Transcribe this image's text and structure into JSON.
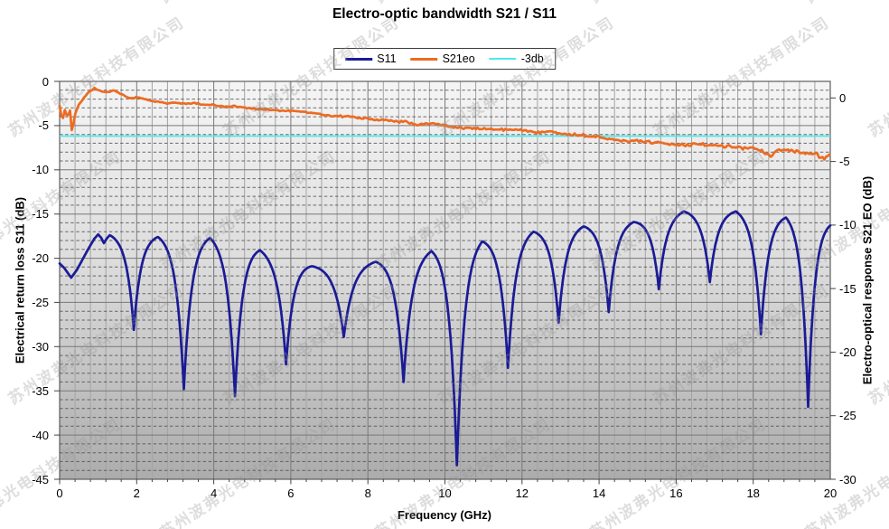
{
  "title": "Electro-optic bandwidth S21 / S11",
  "legend": {
    "items": [
      {
        "label": "S11"
      },
      {
        "label": "S21eo"
      },
      {
        "label": "-3db"
      }
    ]
  },
  "watermark": {
    "text": "苏州波弗光电科技有限公司",
    "color": "rgba(150,150,150,0.32)"
  },
  "colors": {
    "s11": "#1b1b96",
    "s21eo": "#ed6b21",
    "threshold": "#4fe9ec",
    "plot_bg_top": "#f5f5f5",
    "plot_bg_bottom": "#acacac",
    "grid_major": "#787878",
    "grid_minor_v": "#a3a3a3",
    "grid_minor_h_dash": "#4a4a4a"
  },
  "chart_data": {
    "type": "line",
    "title": "Electro-optic bandwidth S21 / S11",
    "xlabel": "Frequency (GHz)",
    "axes": {
      "x": {
        "min": 0,
        "max": 20,
        "major": 2,
        "minor": 0.4,
        "ticks": [
          "0",
          "2",
          "4",
          "6",
          "8",
          "10",
          "12",
          "14",
          "16",
          "18",
          "20"
        ]
      },
      "left": {
        "label": "Electrical return loss S11 (dB)",
        "min": -45,
        "max": 0,
        "major": 5,
        "minor": 1,
        "ticks": [
          "0",
          "-5",
          "-10",
          "-15",
          "-20",
          "-25",
          "-30",
          "-35",
          "-40",
          "-45"
        ]
      },
      "right": {
        "label": "Electro-optical response S21 EO (dB)",
        "min": -30,
        "max": 1.3,
        "major": 5,
        "ticks": [
          "0",
          "-5",
          "-10",
          "-15",
          "-20",
          "-25",
          "-30"
        ]
      }
    },
    "grid": "major-solid, minor-vertical-solid, minor-horizontal-dashed",
    "legend_position": "top-center",
    "threshold": {
      "label": "-3db",
      "value": -3,
      "axis": "right",
      "color": "#4fe9ec"
    },
    "series": [
      {
        "name": "S11",
        "axis": "left",
        "color": "#1b1b96",
        "description": "resonant ripple: rounded peaks ~-17..-15 dB with sharp dips; head = measured lead-in samples, extrema = alternating [peak,dip,...,peak] in (GHz,dB)",
        "head": [
          [
            0,
            -20.6
          ],
          [
            0.12,
            -21.1
          ],
          [
            0.3,
            -22.2
          ],
          [
            0.45,
            -21.3
          ],
          [
            0.6,
            -20.1
          ],
          [
            0.75,
            -18.9
          ],
          [
            0.9,
            -17.8
          ],
          [
            1.0,
            -17.3
          ],
          [
            1.08,
            -17.7
          ],
          [
            1.15,
            -18.3
          ],
          [
            1.22,
            -17.8
          ],
          [
            1.3,
            -17.4
          ]
        ],
        "extrema": [
          [
            1.3,
            -17.4
          ],
          [
            1.87,
            -28.1
          ],
          [
            2.55,
            -17.6
          ],
          [
            3.22,
            -34.8
          ],
          [
            3.9,
            -17.7
          ],
          [
            4.57,
            -35.6
          ],
          [
            5.2,
            -19.1
          ],
          [
            5.9,
            -32.0
          ],
          [
            6.55,
            -20.9
          ],
          [
            7.37,
            -28.9
          ],
          [
            8.2,
            -20.4
          ],
          [
            8.97,
            -34.0
          ],
          [
            9.65,
            -19.2
          ],
          [
            10.28,
            -43.4
          ],
          [
            10.97,
            -18.1
          ],
          [
            11.6,
            -32.4
          ],
          [
            12.3,
            -17.0
          ],
          [
            12.93,
            -27.3
          ],
          [
            13.6,
            -16.4
          ],
          [
            14.25,
            -26.1
          ],
          [
            14.9,
            -15.9
          ],
          [
            15.55,
            -23.5
          ],
          [
            16.2,
            -14.7
          ],
          [
            16.9,
            -22.7
          ],
          [
            17.55,
            -14.7
          ],
          [
            18.2,
            -28.6
          ],
          [
            18.85,
            -15.4
          ],
          [
            19.45,
            -36.8
          ],
          [
            20.0,
            -16.3
          ]
        ]
      },
      {
        "name": "S21eo",
        "axis": "right",
        "color": "#ed6b21",
        "description": "noisy electro-optic response, (GHz,dB) base samples; crosses -3dB near 13.5 GHz",
        "points": [
          [
            0,
            -0.6
          ],
          [
            0.07,
            -1.9
          ],
          [
            0.13,
            -0.9
          ],
          [
            0.2,
            -1.5
          ],
          [
            0.27,
            -1.0
          ],
          [
            0.32,
            -2.7
          ],
          [
            0.4,
            -1.3
          ],
          [
            0.5,
            -0.5
          ],
          [
            0.6,
            -0.15
          ],
          [
            0.7,
            0.3
          ],
          [
            0.8,
            0.55
          ],
          [
            0.9,
            0.75
          ],
          [
            1.0,
            0.65
          ],
          [
            1.1,
            0.5
          ],
          [
            1.25,
            0.45
          ],
          [
            1.4,
            0.6
          ],
          [
            1.55,
            0.35
          ],
          [
            1.7,
            0.15
          ],
          [
            1.85,
            -0.05
          ],
          [
            2.0,
            0.05
          ],
          [
            2.2,
            -0.1
          ],
          [
            2.4,
            -0.25
          ],
          [
            2.6,
            -0.3
          ],
          [
            2.8,
            -0.45
          ],
          [
            3.0,
            -0.35
          ],
          [
            3.2,
            -0.45
          ],
          [
            3.5,
            -0.4
          ],
          [
            3.8,
            -0.55
          ],
          [
            4.0,
            -0.55
          ],
          [
            4.3,
            -0.7
          ],
          [
            4.6,
            -0.65
          ],
          [
            5.0,
            -0.85
          ],
          [
            5.4,
            -0.95
          ],
          [
            5.8,
            -1.0
          ],
          [
            6.2,
            -1.05
          ],
          [
            6.6,
            -1.2
          ],
          [
            7.0,
            -1.4
          ],
          [
            7.4,
            -1.45
          ],
          [
            7.8,
            -1.55
          ],
          [
            8.2,
            -1.7
          ],
          [
            8.6,
            -1.8
          ],
          [
            9.0,
            -1.9
          ],
          [
            9.3,
            -2.15
          ],
          [
            9.6,
            -2.0
          ],
          [
            10.0,
            -2.15
          ],
          [
            10.4,
            -2.35
          ],
          [
            10.8,
            -2.4
          ],
          [
            11.2,
            -2.45
          ],
          [
            11.6,
            -2.5
          ],
          [
            12.0,
            -2.55
          ],
          [
            12.4,
            -2.7
          ],
          [
            12.7,
            -2.55
          ],
          [
            13.0,
            -2.8
          ],
          [
            13.4,
            -2.9
          ],
          [
            13.8,
            -3.0
          ],
          [
            14.2,
            -3.15
          ],
          [
            14.6,
            -3.35
          ],
          [
            15.0,
            -3.4
          ],
          [
            15.4,
            -3.5
          ],
          [
            15.8,
            -3.55
          ],
          [
            16.2,
            -3.7
          ],
          [
            16.6,
            -3.6
          ],
          [
            17.0,
            -3.75
          ],
          [
            17.4,
            -3.8
          ],
          [
            17.8,
            -3.95
          ],
          [
            18.1,
            -4.0
          ],
          [
            18.45,
            -4.55
          ],
          [
            18.7,
            -4.1
          ],
          [
            19.0,
            -4.2
          ],
          [
            19.3,
            -4.3
          ],
          [
            19.6,
            -4.4
          ],
          [
            19.8,
            -4.75
          ],
          [
            20.0,
            -4.5
          ]
        ]
      }
    ]
  }
}
